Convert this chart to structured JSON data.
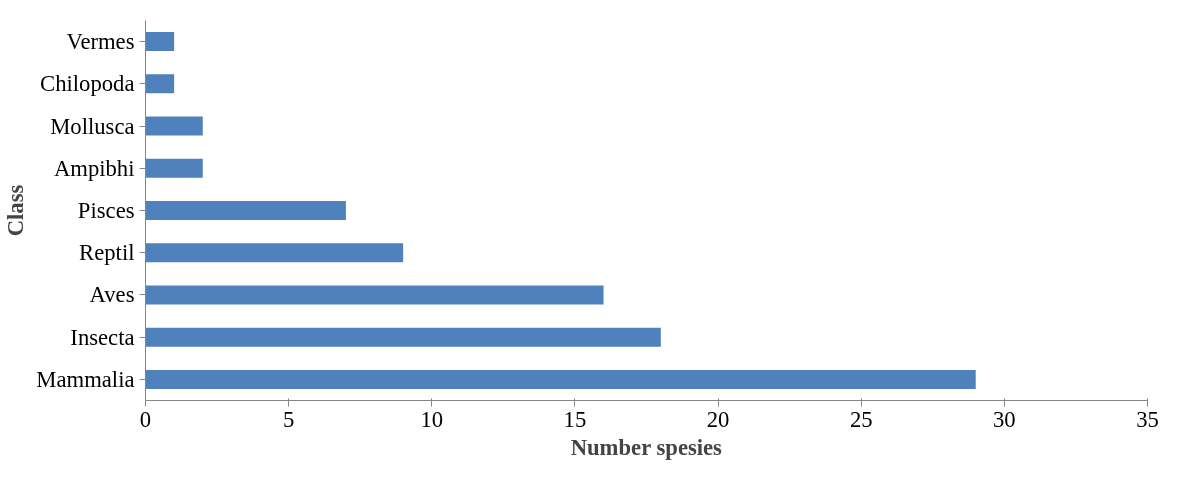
{
  "chart_data": {
    "type": "bar",
    "orientation": "horizontal",
    "xlabel": "Number spesies",
    "ylabel": "Class",
    "categories": [
      "Vermes",
      "Chilopoda",
      "Mollusca",
      "Ampibhi",
      "Pisces",
      "Reptil",
      "Aves",
      "Insecta",
      "Mammalia"
    ],
    "values": [
      1,
      1,
      2,
      2,
      7,
      9,
      16,
      18,
      29
    ],
    "color": "#4f81bd",
    "xlim": [
      0,
      35
    ],
    "xticks": [
      0,
      5,
      10,
      15,
      20,
      25,
      30,
      35
    ],
    "grid": false
  }
}
